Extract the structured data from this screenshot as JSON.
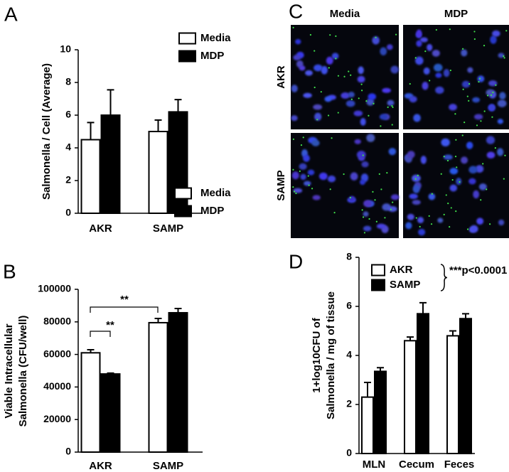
{
  "chart_data": [
    {
      "type": "bar",
      "panel_label": "A",
      "ylabel": [
        "Salmonella / Cell (Average)"
      ],
      "categories": [
        "AKR",
        "SAMP"
      ],
      "series": [
        {
          "name": "Media",
          "color": "#ffffff",
          "values": [
            4.5,
            5.0
          ],
          "errors": [
            1.05,
            0.7
          ]
        },
        {
          "name": "MDP",
          "color": "#000000",
          "values": [
            6.0,
            6.2
          ],
          "errors": [
            1.55,
            0.75
          ]
        }
      ],
      "ylim": [
        0,
        10
      ],
      "yticks": [
        0,
        2,
        4,
        6,
        8,
        10
      ]
    },
    {
      "type": "bar",
      "panel_label": "B",
      "ylabel": [
        "Viable Intracellular",
        "Salmonella (CFU/well)"
      ],
      "categories": [
        "AKR",
        "SAMP"
      ],
      "series": [
        {
          "name": "Media",
          "color": "#ffffff",
          "values": [
            61000,
            79500
          ],
          "errors": [
            1900,
            2600
          ]
        },
        {
          "name": "MDP",
          "color": "#000000",
          "values": [
            48000,
            85600
          ],
          "errors": [
            500,
            2600
          ]
        }
      ],
      "annotations": [
        "**",
        "**"
      ],
      "ylim": [
        0,
        100000
      ],
      "yticks": [
        0,
        20000,
        40000,
        60000,
        80000,
        100000
      ]
    },
    {
      "type": "bar",
      "panel_label": "D",
      "ylabel": [
        "1+log10CFU of",
        "Salmonella / mg of tissue"
      ],
      "categories": [
        "MLN",
        "Cecum",
        "Feces"
      ],
      "series": [
        {
          "name": "AKR",
          "color": "#ffffff",
          "values": [
            2.3,
            4.6,
            4.8
          ],
          "errors": [
            0.6,
            0.15,
            0.2
          ]
        },
        {
          "name": "SAMP",
          "color": "#000000",
          "values": [
            3.35,
            5.7,
            5.5
          ],
          "errors": [
            0.15,
            0.45,
            0.2
          ]
        }
      ],
      "annotations": [
        "***p<0.0001"
      ],
      "ylim": [
        0,
        8
      ],
      "yticks": [
        0,
        2,
        4,
        6,
        8
      ]
    }
  ],
  "image_panel": {
    "panel_label": "C",
    "columns": [
      "Media",
      "MDP"
    ],
    "rows": [
      "AKR",
      "SAMP"
    ]
  }
}
